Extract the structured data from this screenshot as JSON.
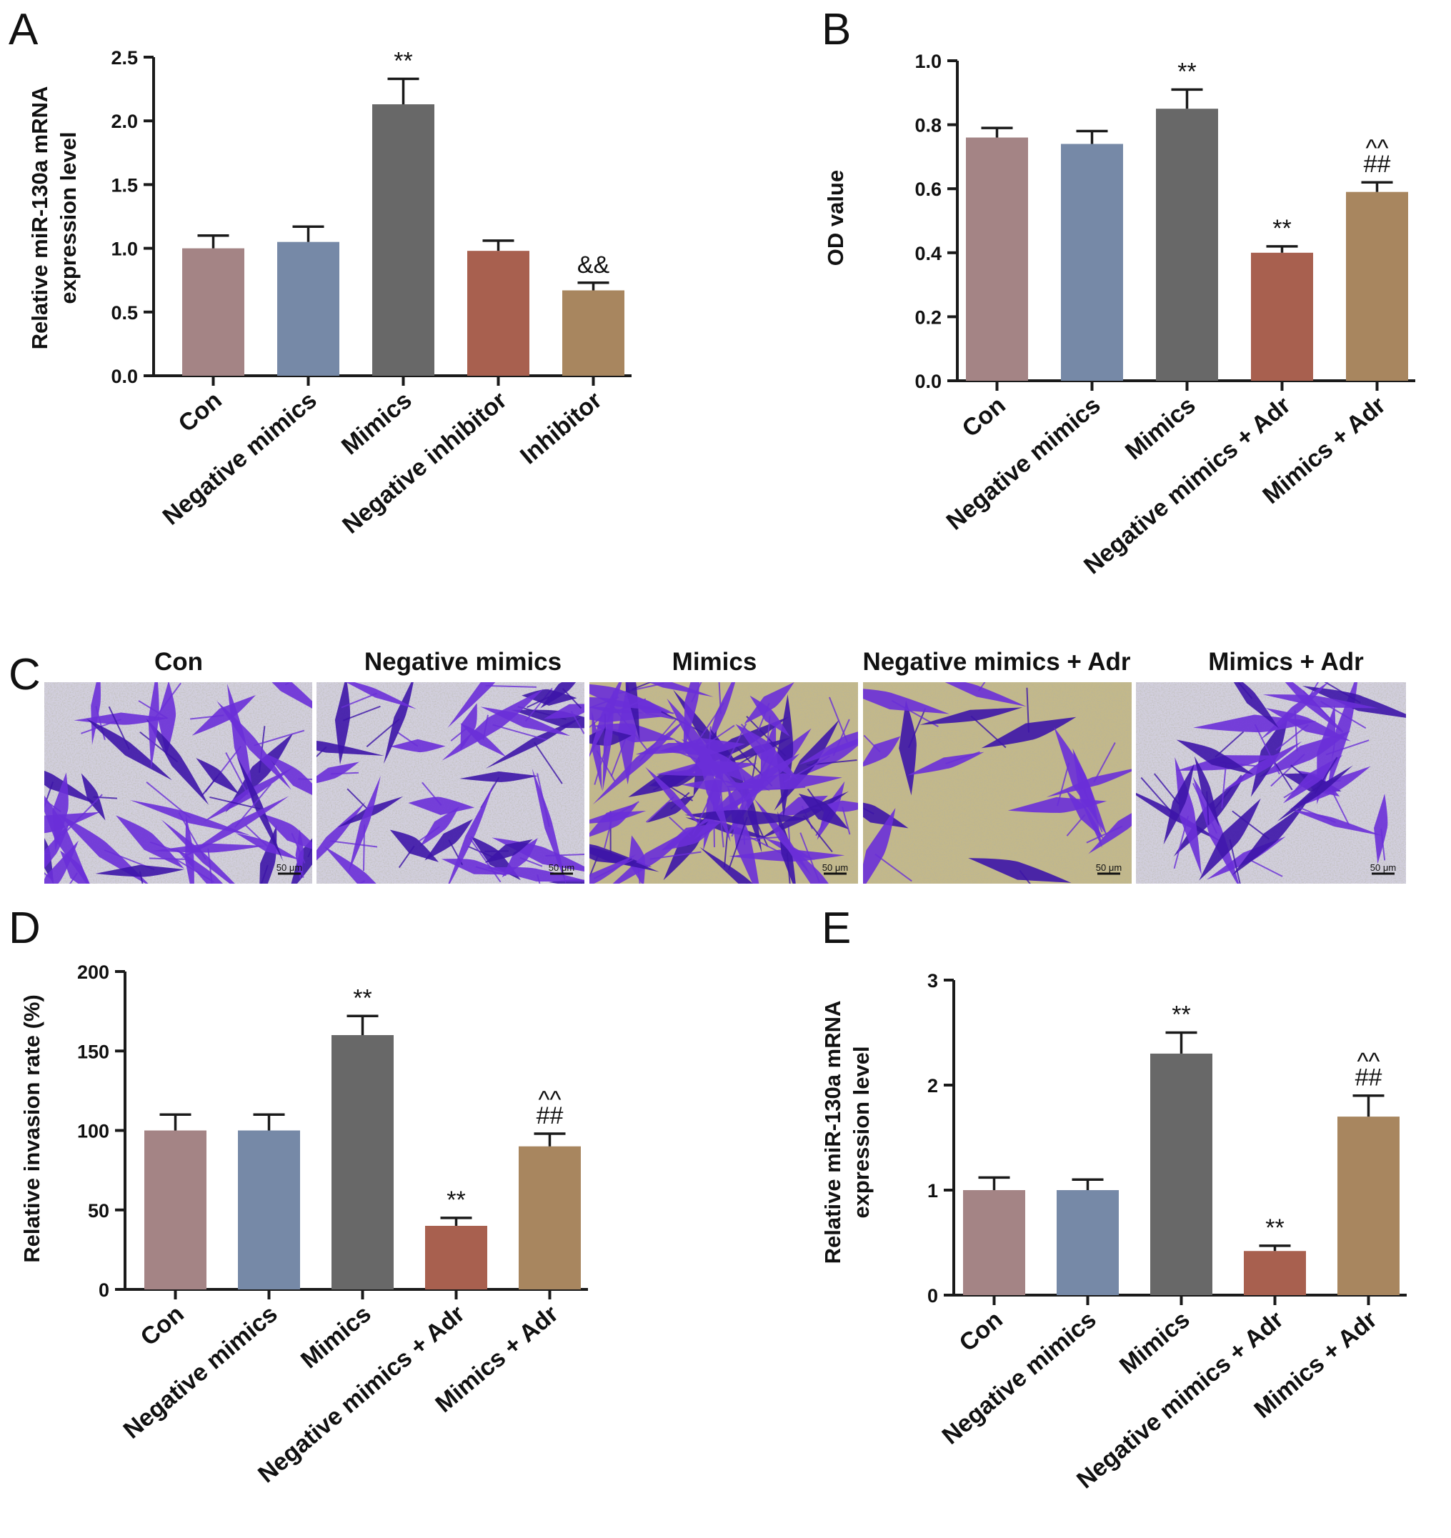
{
  "colors": {
    "con": "#a48485",
    "negative_mimics": "#7689a7",
    "mimics": "#686868",
    "negative_treatment": "#a8604f",
    "treatment": "#a8865f",
    "axis": "#1a1a1a",
    "stain": "#6a2fd8",
    "stain_dark": "#3d15a8",
    "field": "#c9c8d8",
    "field_yellow": "#b9a85a"
  },
  "chart_data": [
    {
      "panel": "A",
      "type": "bar",
      "ylabel": [
        "Relative miR-130a mRNA",
        "expression level"
      ],
      "ylim": [
        0,
        2.5
      ],
      "yticks": [
        "0.0",
        "0.5",
        "1.0",
        "1.5",
        "2.0",
        "2.5"
      ],
      "categories": [
        "Con",
        "Negative mimics",
        "Mimics",
        "Negative inhibitor",
        "Inhibitor"
      ],
      "values": [
        1.0,
        1.05,
        2.13,
        0.98,
        0.67
      ],
      "errors": [
        0.1,
        0.12,
        0.2,
        0.08,
        0.06
      ],
      "annotations": [
        [],
        [],
        [
          "**"
        ],
        [],
        [
          "&&"
        ]
      ]
    },
    {
      "panel": "B",
      "type": "bar",
      "ylabel": [
        "OD value"
      ],
      "ylim": [
        0,
        1.0
      ],
      "yticks": [
        "0.0",
        "0.2",
        "0.4",
        "0.6",
        "0.8",
        "1.0"
      ],
      "categories": [
        "Con",
        "Negative mimics",
        "Mimics",
        "Negative mimics + Adr",
        "Mimics + Adr"
      ],
      "values": [
        0.76,
        0.74,
        0.85,
        0.4,
        0.59
      ],
      "errors": [
        0.03,
        0.04,
        0.06,
        0.02,
        0.03
      ],
      "annotations": [
        [],
        [],
        [
          "**"
        ],
        [
          "**"
        ],
        [
          "##",
          "^^"
        ]
      ]
    },
    {
      "panel": "D",
      "type": "bar",
      "ylabel": [
        "Relative invasion rate (%)"
      ],
      "ylim": [
        0,
        200
      ],
      "yticks": [
        "0",
        "50",
        "100",
        "150",
        "200"
      ],
      "categories": [
        "Con",
        "Negative mimics",
        "Mimics",
        "Negative mimics + Adr",
        "Mimics + Adr"
      ],
      "values": [
        100,
        100,
        160,
        40,
        90
      ],
      "errors": [
        10,
        10,
        12,
        5,
        8
      ],
      "annotations": [
        [],
        [],
        [
          "**"
        ],
        [
          "**"
        ],
        [
          "##",
          "^^"
        ]
      ]
    },
    {
      "panel": "E",
      "type": "bar",
      "ylabel": [
        "Relative miR-130a mRNA",
        "expression level"
      ],
      "ylim": [
        0,
        3
      ],
      "yticks": [
        "0",
        "1",
        "2",
        "3"
      ],
      "categories": [
        "Con",
        "Negative mimics",
        "Mimics",
        "Negative mimics + Adr",
        "Mimics + Adr"
      ],
      "values": [
        1.0,
        1.0,
        2.3,
        0.42,
        1.7
      ],
      "errors": [
        0.12,
        0.1,
        0.2,
        0.05,
        0.2
      ],
      "annotations": [
        [],
        [],
        [
          "**"
        ],
        [
          "**"
        ],
        [
          "##",
          "^^"
        ]
      ]
    }
  ],
  "micrographs": {
    "panel": "C",
    "titles": [
      "Con",
      "Negative mimics",
      "Mimics",
      "Negative mimics + Adr",
      "Mimics + Adr"
    ],
    "scale_label": "50 μm",
    "cell_density": [
      38,
      34,
      70,
      16,
      30
    ]
  }
}
